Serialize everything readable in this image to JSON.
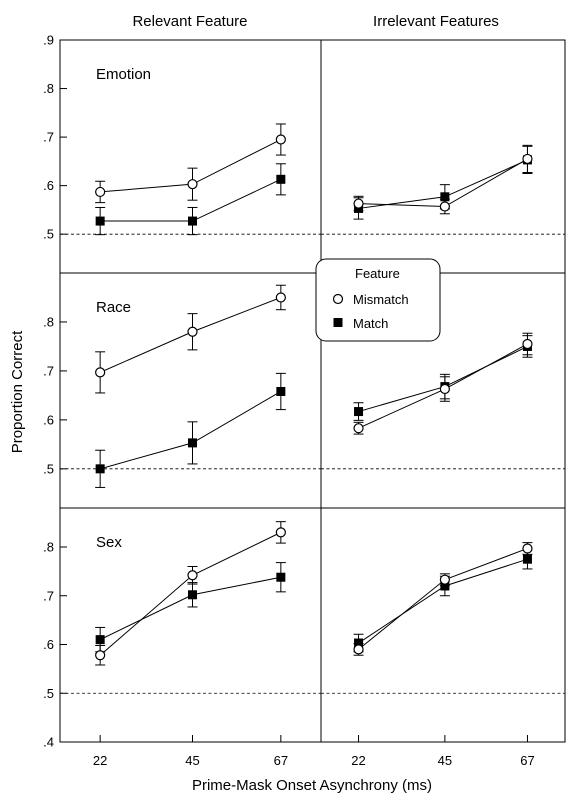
{
  "column_titles": [
    "Relevant Feature",
    "Irrelevant Features"
  ],
  "y_axis_label": "Proportion Correct",
  "x_axis_label": "Prime-Mask Onset Asynchrony (ms)",
  "legend": {
    "title": "Feature",
    "entries": [
      {
        "label": "Mismatch",
        "marker": "open-circle"
      },
      {
        "label": "Match",
        "marker": "filled-square"
      }
    ]
  },
  "chart_data": {
    "type": "line",
    "x": [
      22,
      45,
      67
    ],
    "x_tick_labels": [
      "22",
      "45",
      "67"
    ],
    "chance_line": 0.5,
    "rows": [
      {
        "label": "Emotion",
        "ylim": [
          0.42,
          0.9
        ],
        "y_ticks": [
          0.5,
          0.6,
          0.7,
          0.8,
          0.9
        ],
        "y_tick_labels": [
          ".5",
          ".6",
          ".7",
          ".8",
          ".9"
        ],
        "panels": [
          {
            "column": "Relevant Feature",
            "series": [
              {
                "name": "Mismatch",
                "values": [
                  0.587,
                  0.603,
                  0.695
                ],
                "errors": [
                  0.022,
                  0.033,
                  0.032
                ]
              },
              {
                "name": "Match",
                "values": [
                  0.527,
                  0.527,
                  0.613
                ],
                "errors": [
                  0.028,
                  0.028,
                  0.032
                ]
              }
            ]
          },
          {
            "column": "Irrelevant Features",
            "series": [
              {
                "name": "Mismatch",
                "values": [
                  0.563,
                  0.557,
                  0.655
                ],
                "errors": [
                  0.015,
                  0.015,
                  0.028
                ]
              },
              {
                "name": "Match",
                "values": [
                  0.553,
                  0.577,
                  0.653
                ],
                "errors": [
                  0.022,
                  0.025,
                  0.028
                ]
              }
            ]
          }
        ]
      },
      {
        "label": "Race",
        "ylim": [
          0.42,
          0.9
        ],
        "y_ticks": [
          0.5,
          0.6,
          0.7,
          0.8
        ],
        "y_tick_labels": [
          ".5",
          ".6",
          ".7",
          ".8"
        ],
        "panels": [
          {
            "column": "Relevant Feature",
            "series": [
              {
                "name": "Mismatch",
                "values": [
                  0.697,
                  0.78,
                  0.85
                ],
                "errors": [
                  0.042,
                  0.037,
                  0.025
                ]
              },
              {
                "name": "Match",
                "values": [
                  0.5,
                  0.553,
                  0.658
                ],
                "errors": [
                  0.038,
                  0.043,
                  0.037
                ]
              }
            ]
          },
          {
            "column": "Irrelevant Features",
            "series": [
              {
                "name": "Mismatch",
                "values": [
                  0.583,
                  0.663,
                  0.755
                ],
                "errors": [
                  0.012,
                  0.025,
                  0.022
                ]
              },
              {
                "name": "Match",
                "values": [
                  0.617,
                  0.668,
                  0.75
                ],
                "errors": [
                  0.018,
                  0.025,
                  0.022
                ]
              }
            ]
          }
        ]
      },
      {
        "label": "Sex",
        "ylim": [
          0.4,
          0.88
        ],
        "y_ticks": [
          0.4,
          0.5,
          0.6,
          0.7,
          0.8
        ],
        "y_tick_labels": [
          ".4",
          ".5",
          ".6",
          ".7",
          ".8"
        ],
        "panels": [
          {
            "column": "Relevant Feature",
            "series": [
              {
                "name": "Mismatch",
                "values": [
                  0.578,
                  0.742,
                  0.83
                ],
                "errors": [
                  0.02,
                  0.018,
                  0.022
                ]
              },
              {
                "name": "Match",
                "values": [
                  0.61,
                  0.702,
                  0.738
                ],
                "errors": [
                  0.025,
                  0.025,
                  0.03
                ]
              }
            ]
          },
          {
            "column": "Irrelevant Features",
            "series": [
              {
                "name": "Mismatch",
                "values": [
                  0.59,
                  0.733,
                  0.797
                ],
                "errors": [
                  0.012,
                  0.012,
                  0.012
                ]
              },
              {
                "name": "Match",
                "values": [
                  0.603,
                  0.72,
                  0.775
                ],
                "errors": [
                  0.018,
                  0.02,
                  0.02
                ]
              }
            ]
          }
        ]
      }
    ]
  }
}
